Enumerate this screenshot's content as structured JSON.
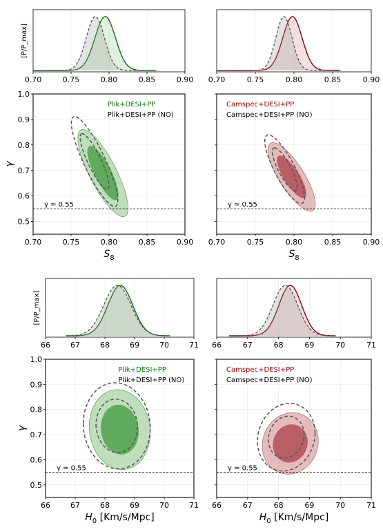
{
  "colors": {
    "green": "#0a6e0a",
    "green_outer": "#a9d3a5",
    "green_inner": "#55a552",
    "red": "#8b0000",
    "red_outer": "#dba6a6",
    "red_inner": "#b4545b",
    "no_line": "#555555"
  },
  "chart_data": [
    {
      "type": "line",
      "panel": "s8-posterior-plik",
      "ylabel": "[P/P_max]",
      "xlim": [
        0.7,
        0.9
      ],
      "xticks": [
        "0.70",
        "0.75",
        "0.80",
        "0.85",
        "0.90"
      ],
      "series": [
        {
          "name": "Plik+DESI+PP",
          "mean": 0.795,
          "sigma": 0.0135,
          "range": [
            0.7,
            0.862
          ]
        },
        {
          "name": "Plik+DESI+PP (NO)",
          "mean": 0.782,
          "sigma": 0.012,
          "range": [
            0.7,
            0.845
          ]
        }
      ]
    },
    {
      "type": "line",
      "panel": "s8-posterior-camspec",
      "xlim": [
        0.7,
        0.9
      ],
      "xticks": [
        "0.70",
        "0.75",
        "0.80",
        "0.85",
        "0.90"
      ],
      "series": [
        {
          "name": "Camspec+DESI+PP",
          "mean": 0.798,
          "sigma": 0.0125,
          "range": [
            0.7,
            0.86
          ]
        },
        {
          "name": "Camspec+DESI+PP (NO)",
          "mean": 0.787,
          "sigma": 0.0105,
          "range": [
            0.7,
            0.84
          ]
        }
      ]
    },
    {
      "type": "contour",
      "panel": "s8-gamma-plik",
      "xlabel": "S_8",
      "ylabel": "γ",
      "xlim": [
        0.7,
        0.9
      ],
      "ylim": [
        0.45,
        1.0
      ],
      "xticks": [
        "0.70",
        "0.75",
        "0.80",
        "0.85",
        "0.90"
      ],
      "yticks": [
        "0.5",
        "0.6",
        "0.7",
        "0.8",
        "0.9",
        "1.0"
      ],
      "reference_line": {
        "y": 0.55,
        "label": "γ ≃ 0.55"
      },
      "legend": [
        "Plik+DESI+PP",
        "Plik+DESI+PP (NO)"
      ],
      "legend_location": "top-right",
      "filled": {
        "cx": 0.792,
        "cy": 0.69,
        "sx": 0.0135,
        "sy": 0.07,
        "rho": -0.8
      },
      "dashed": {
        "cx": 0.781,
        "cy": 0.735,
        "sx": 0.0125,
        "sy": 0.072,
        "rho": -0.86
      }
    },
    {
      "type": "contour",
      "panel": "s8-gamma-camspec",
      "xlabel": "S_8",
      "xlim": [
        0.7,
        0.9
      ],
      "ylim": [
        0.45,
        1.0
      ],
      "xticks": [
        "0.70",
        "0.75",
        "0.80",
        "0.85",
        "0.90"
      ],
      "reference_line": {
        "y": 0.55,
        "label": "γ ≃ 0.55"
      },
      "legend": [
        "Camspec+DESI+PP",
        "Camspec+DESI+PP (NO)"
      ],
      "legend_location": "top-left",
      "filled": {
        "cx": 0.797,
        "cy": 0.675,
        "sx": 0.0125,
        "sy": 0.055,
        "rho": -0.79
      },
      "dashed": {
        "cx": 0.788,
        "cy": 0.705,
        "sx": 0.0105,
        "sy": 0.055,
        "rho": -0.82
      }
    },
    {
      "type": "line",
      "panel": "h0-posterior-plik",
      "ylabel": "[P/P_max]",
      "xlim": [
        66,
        71
      ],
      "xticks": [
        "66",
        "67",
        "68",
        "69",
        "70",
        "71"
      ],
      "series": [
        {
          "name": "Plik+DESI+PP",
          "mean": 68.52,
          "sigma": 0.42,
          "range": [
            66.7,
            70.2
          ]
        },
        {
          "name": "Plik+DESI+PP (NO)",
          "mean": 68.42,
          "sigma": 0.46,
          "range": [
            66.7,
            70.2
          ]
        }
      ]
    },
    {
      "type": "line",
      "panel": "h0-posterior-camspec",
      "xlim": [
        66,
        71
      ],
      "xticks": [
        "66",
        "67",
        "68",
        "69",
        "70",
        "71"
      ],
      "series": [
        {
          "name": "Camspec+DESI+PP",
          "mean": 68.38,
          "sigma": 0.37,
          "range": [
            66.4,
            69.85
          ]
        },
        {
          "name": "Camspec+DESI+PP (NO)",
          "mean": 68.22,
          "sigma": 0.4,
          "range": [
            66.4,
            69.85
          ]
        }
      ]
    },
    {
      "type": "contour",
      "panel": "h0-gamma-plik",
      "xlabel": "H_0 [Km/s/Mpc]",
      "ylabel": "γ",
      "xlim": [
        66,
        71
      ],
      "ylim": [
        0.45,
        1.0
      ],
      "xticks": [
        "66",
        "67",
        "68",
        "69",
        "70",
        "71"
      ],
      "yticks": [
        "0.5",
        "0.6",
        "0.7",
        "0.8",
        "0.9",
        "1.0"
      ],
      "reference_line": {
        "y": 0.55,
        "label": "γ ≃ 0.55"
      },
      "legend": [
        "Plik+DESI+PP",
        "Plik+DESI+PP (NO)"
      ],
      "legend_location": "top-right",
      "filled": {
        "cx": 68.5,
        "cy": 0.72,
        "sx": 0.42,
        "sy": 0.065,
        "rho": -0.08
      },
      "dashed": {
        "cx": 68.4,
        "cy": 0.735,
        "sx": 0.46,
        "sy": 0.07,
        "rho": -0.05
      }
    },
    {
      "type": "contour",
      "panel": "h0-gamma-camspec",
      "xlabel": "H_0 [Km/s/Mpc]",
      "xlim": [
        66,
        71
      ],
      "ylim": [
        0.45,
        1.0
      ],
      "xticks": [
        "66",
        "67",
        "68",
        "69",
        "70",
        "71"
      ],
      "reference_line": {
        "y": 0.55,
        "label": "γ ≃ 0.55"
      },
      "legend": [
        "Camspec+DESI+PP",
        "Camspec+DESI+PP (NO)"
      ],
      "legend_location": "top-left",
      "filled": {
        "cx": 68.38,
        "cy": 0.665,
        "sx": 0.37,
        "sy": 0.05,
        "rho": 0.08
      },
      "dashed": {
        "cx": 68.25,
        "cy": 0.69,
        "sx": 0.38,
        "sy": 0.055,
        "rho": 0.12
      }
    }
  ]
}
